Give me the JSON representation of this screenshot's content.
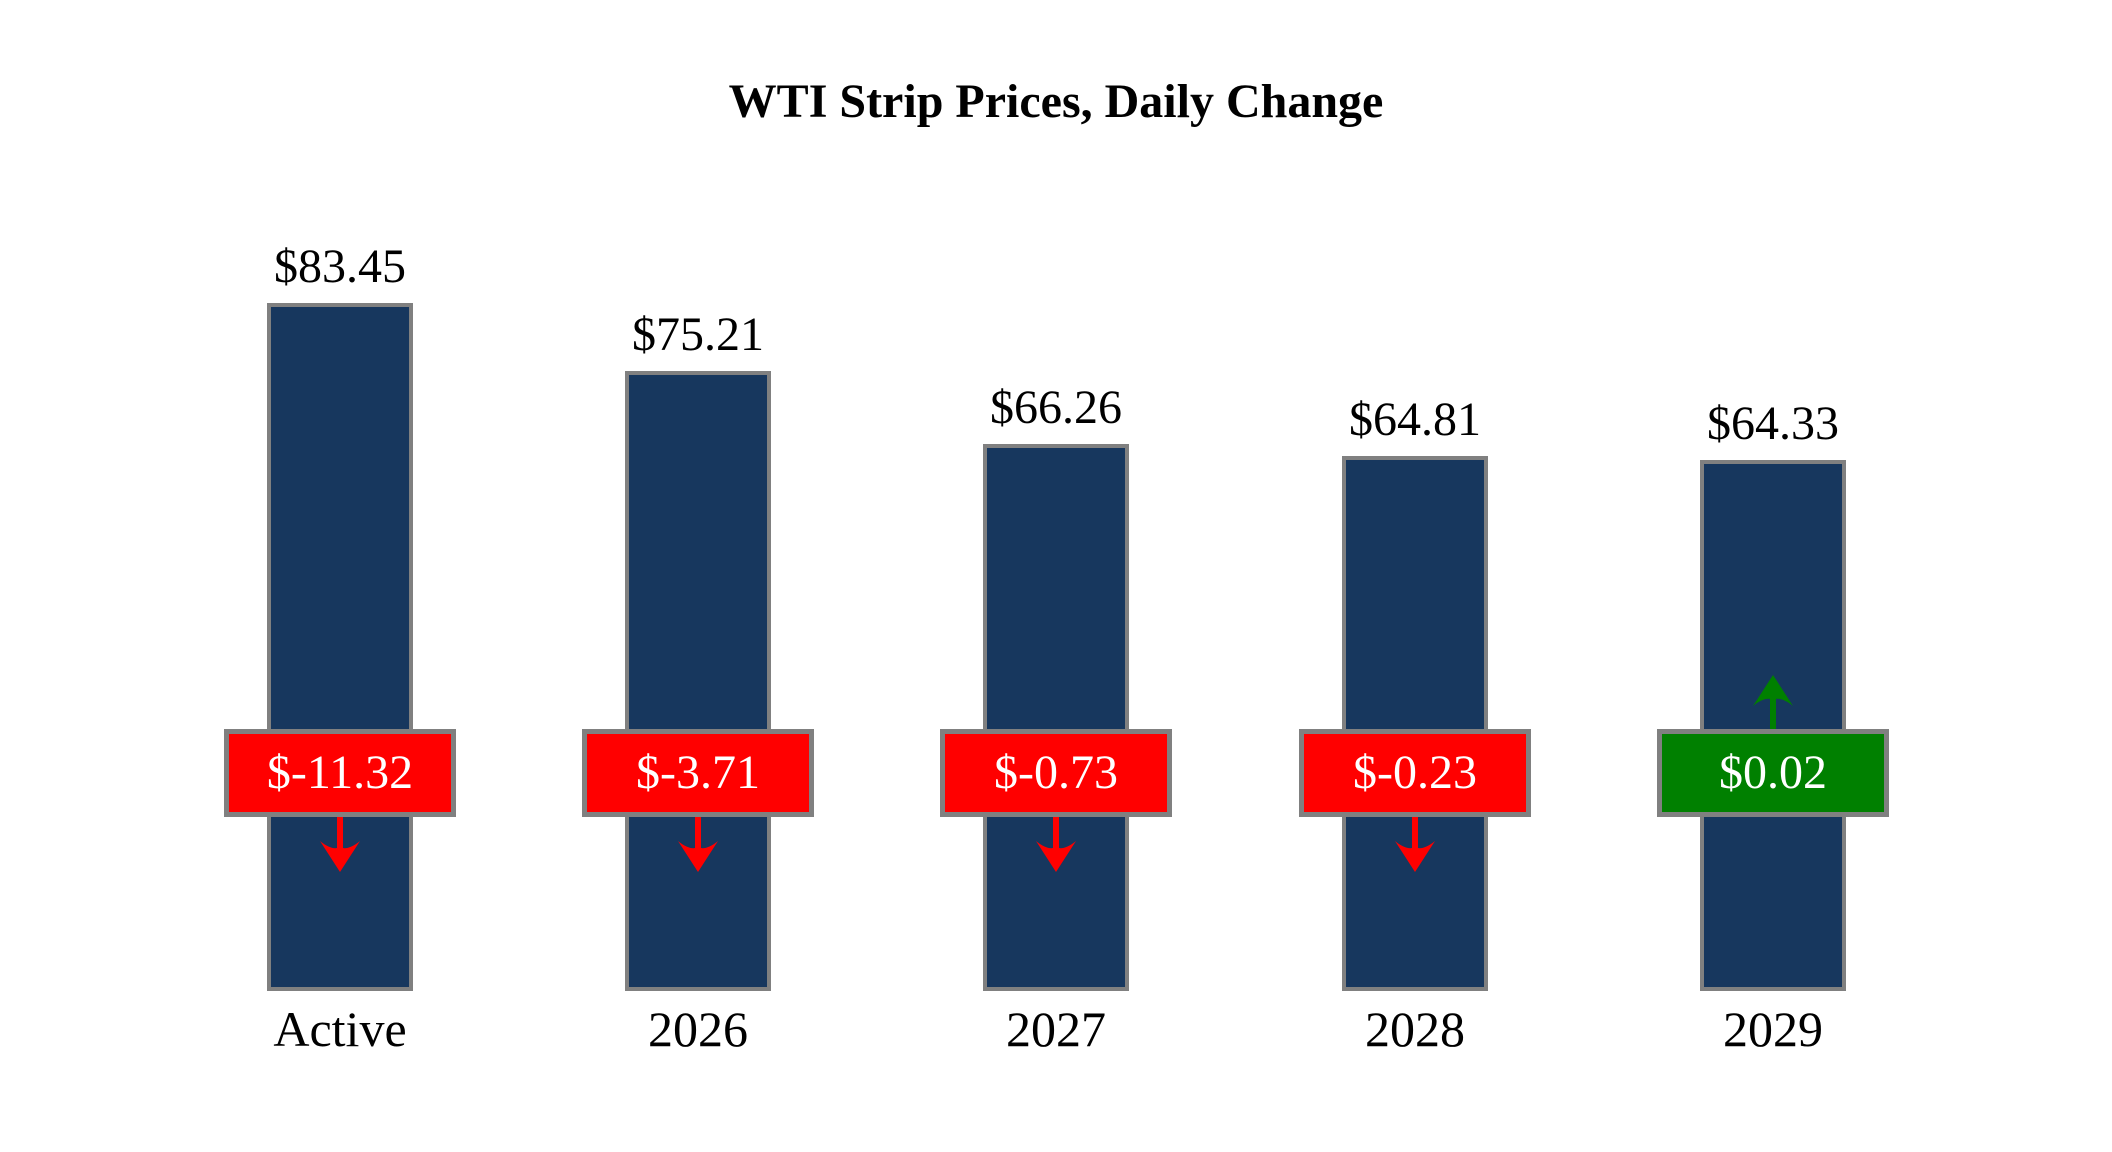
{
  "title": "WTI Strip Prices, Daily Change",
  "colors": {
    "bar_fill": "#17375E",
    "bar_border": "#808080",
    "badge_border": "#808080",
    "badge_text": "#FFFFFF",
    "negative": "#FF0000",
    "positive": "#008000",
    "text": "#000000",
    "background": "#FFFFFF"
  },
  "chart_data": {
    "type": "bar",
    "title": "WTI Strip Prices, Daily Change",
    "categories": [
      "Active",
      "2026",
      "2027",
      "2028",
      "2029"
    ],
    "series": [
      {
        "name": "Strip Price",
        "values": [
          83.45,
          75.21,
          66.26,
          64.81,
          64.33
        ],
        "labels": [
          "$83.45",
          "$75.21",
          "$66.26",
          "$64.81",
          "$64.33"
        ]
      },
      {
        "name": "Daily Change",
        "values": [
          -11.32,
          -3.71,
          -0.73,
          -0.23,
          0.02
        ],
        "labels": [
          "$-11.32",
          "$-3.71",
          "$-0.73",
          "$-0.23",
          "$0.02"
        ]
      }
    ],
    "ylim": [
      0,
      90
    ],
    "xlabel": "",
    "ylabel": "",
    "grid": false,
    "legend": "none",
    "notes": "negative daily changes shown as red badge with down arrow; positive changes as green badge with up arrow"
  }
}
